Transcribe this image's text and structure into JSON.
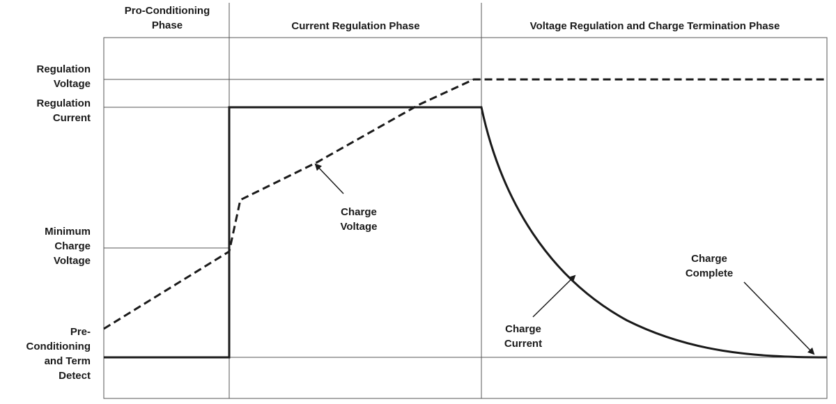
{
  "phases": {
    "preconditioning": "Pro-Conditioning\nPhase",
    "current_regulation": "Current Regulation Phase",
    "voltage_regulation": "Voltage Regulation and Charge Termination Phase"
  },
  "levels": {
    "regulation_voltage": "Regulation\nVoltage",
    "regulation_current": "Regulation\nCurrent",
    "minimum_charge_voltage": "Minimum\nCharge\nVoltage",
    "preconditioning_term": "Pre-\nConditioning\nand Term\nDetect"
  },
  "annotations": {
    "charge_voltage": "Charge\nVoltage",
    "charge_current": "Charge\nCurrent",
    "charge_complete": "Charge\nComplete"
  }
}
